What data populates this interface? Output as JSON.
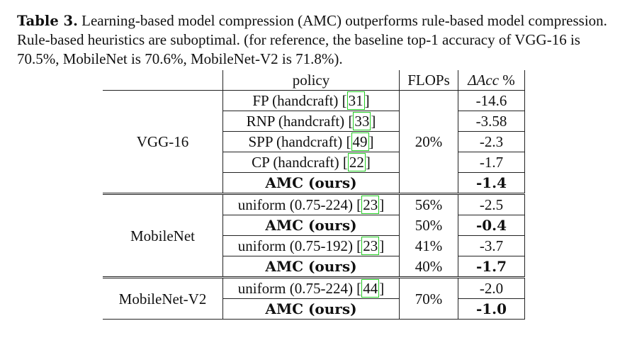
{
  "caption": {
    "label": "Table 3.",
    "text": " Learning-based model compression (AMC) outperforms rule-based model compression. Rule-based heuristics are suboptimal. (for reference, the baseline top-1 accuracy of VGG-16 is 70.5%, MobileNet is 70.6%, MobileNet-V2 is 71.8%)."
  },
  "header": {
    "policy": "policy",
    "flops": "FLOPs",
    "acc_delta": "Δ",
    "acc_word": "Acc",
    "acc_unit": " %"
  },
  "vgg": {
    "model": "VGG-16",
    "flops": "20%",
    "rows": [
      {
        "policy": "FP (handcraft) [",
        "cite": "31",
        "close": "]",
        "acc": "-14.6"
      },
      {
        "policy": "RNP (handcraft) [",
        "cite": "33",
        "close": "]",
        "acc": "-3.58"
      },
      {
        "policy": "SPP (handcraft) [",
        "cite": "49",
        "close": "]",
        "acc": "-2.3"
      },
      {
        "policy": "CP (handcraft) [",
        "cite": "22",
        "close": "]",
        "acc": "-1.7"
      }
    ],
    "amc": {
      "policy": "AMC (ours)",
      "acc": "-1.4"
    }
  },
  "mobilenet": {
    "model": "MobileNet",
    "rows": [
      {
        "policy": "uniform (0.75-224) [",
        "cite": "23",
        "close": "]",
        "flops": "56%",
        "acc": "-2.5"
      },
      {
        "policy": "AMC (ours)",
        "flops": "50%",
        "acc": "-0.4"
      },
      {
        "policy": "uniform (0.75-192) [",
        "cite": "23",
        "close": "]",
        "flops": "41%",
        "acc": "-3.7"
      },
      {
        "policy": "AMC (ours)",
        "flops": "40%",
        "acc": "-1.7"
      }
    ]
  },
  "mobilenetv2": {
    "model": "MobileNet-V2",
    "flops": "70%",
    "rows": [
      {
        "policy": "uniform (0.75-224) [",
        "cite": "44",
        "close": "]",
        "acc": "-2.0"
      },
      {
        "policy": "AMC (ours)",
        "acc": "-1.0"
      }
    ]
  }
}
